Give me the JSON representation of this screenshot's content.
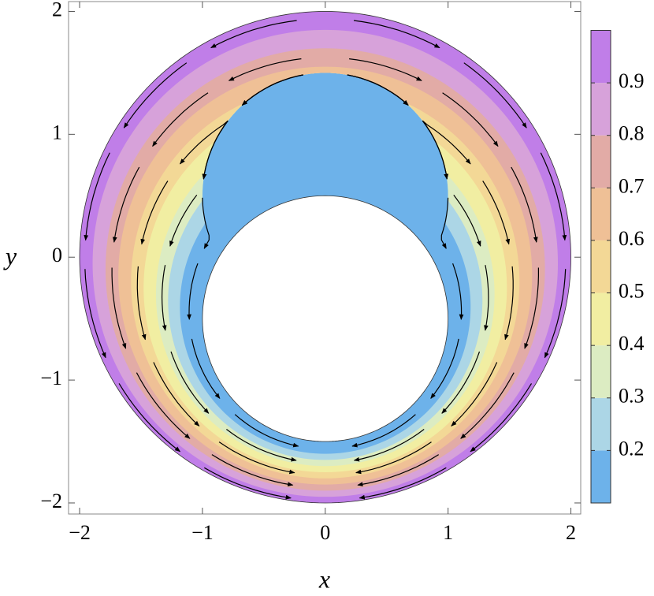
{
  "chart_data": {
    "type": "contour",
    "xlabel": "x",
    "ylabel": "y",
    "xlim": [
      -2.09,
      2.08
    ],
    "ylim": [
      -2.09,
      2.08
    ],
    "xticks": [
      {
        "value": -2,
        "label": "−2"
      },
      {
        "value": -1,
        "label": "−1"
      },
      0,
      1,
      2
    ],
    "yticks": [
      {
        "value": -2,
        "label": "−2"
      },
      {
        "value": -1,
        "label": "−1"
      },
      0,
      1,
      2
    ],
    "levels": [
      0.1,
      0.2,
      0.3,
      0.4,
      0.5,
      0.6,
      0.7,
      0.8,
      0.9,
      1.0
    ],
    "colors": [
      "#6db2ea",
      "#acd6e6",
      "#dcecc2",
      "#f1eea2",
      "#f3d896",
      "#efc096",
      "#e2aba6",
      "#d7a2da",
      "#c07ee8"
    ],
    "clim": [
      0.1,
      1.0
    ],
    "cticks": [
      0.2,
      0.3,
      0.4,
      0.5,
      0.6,
      0.7,
      0.8,
      0.9
    ]
  }
}
